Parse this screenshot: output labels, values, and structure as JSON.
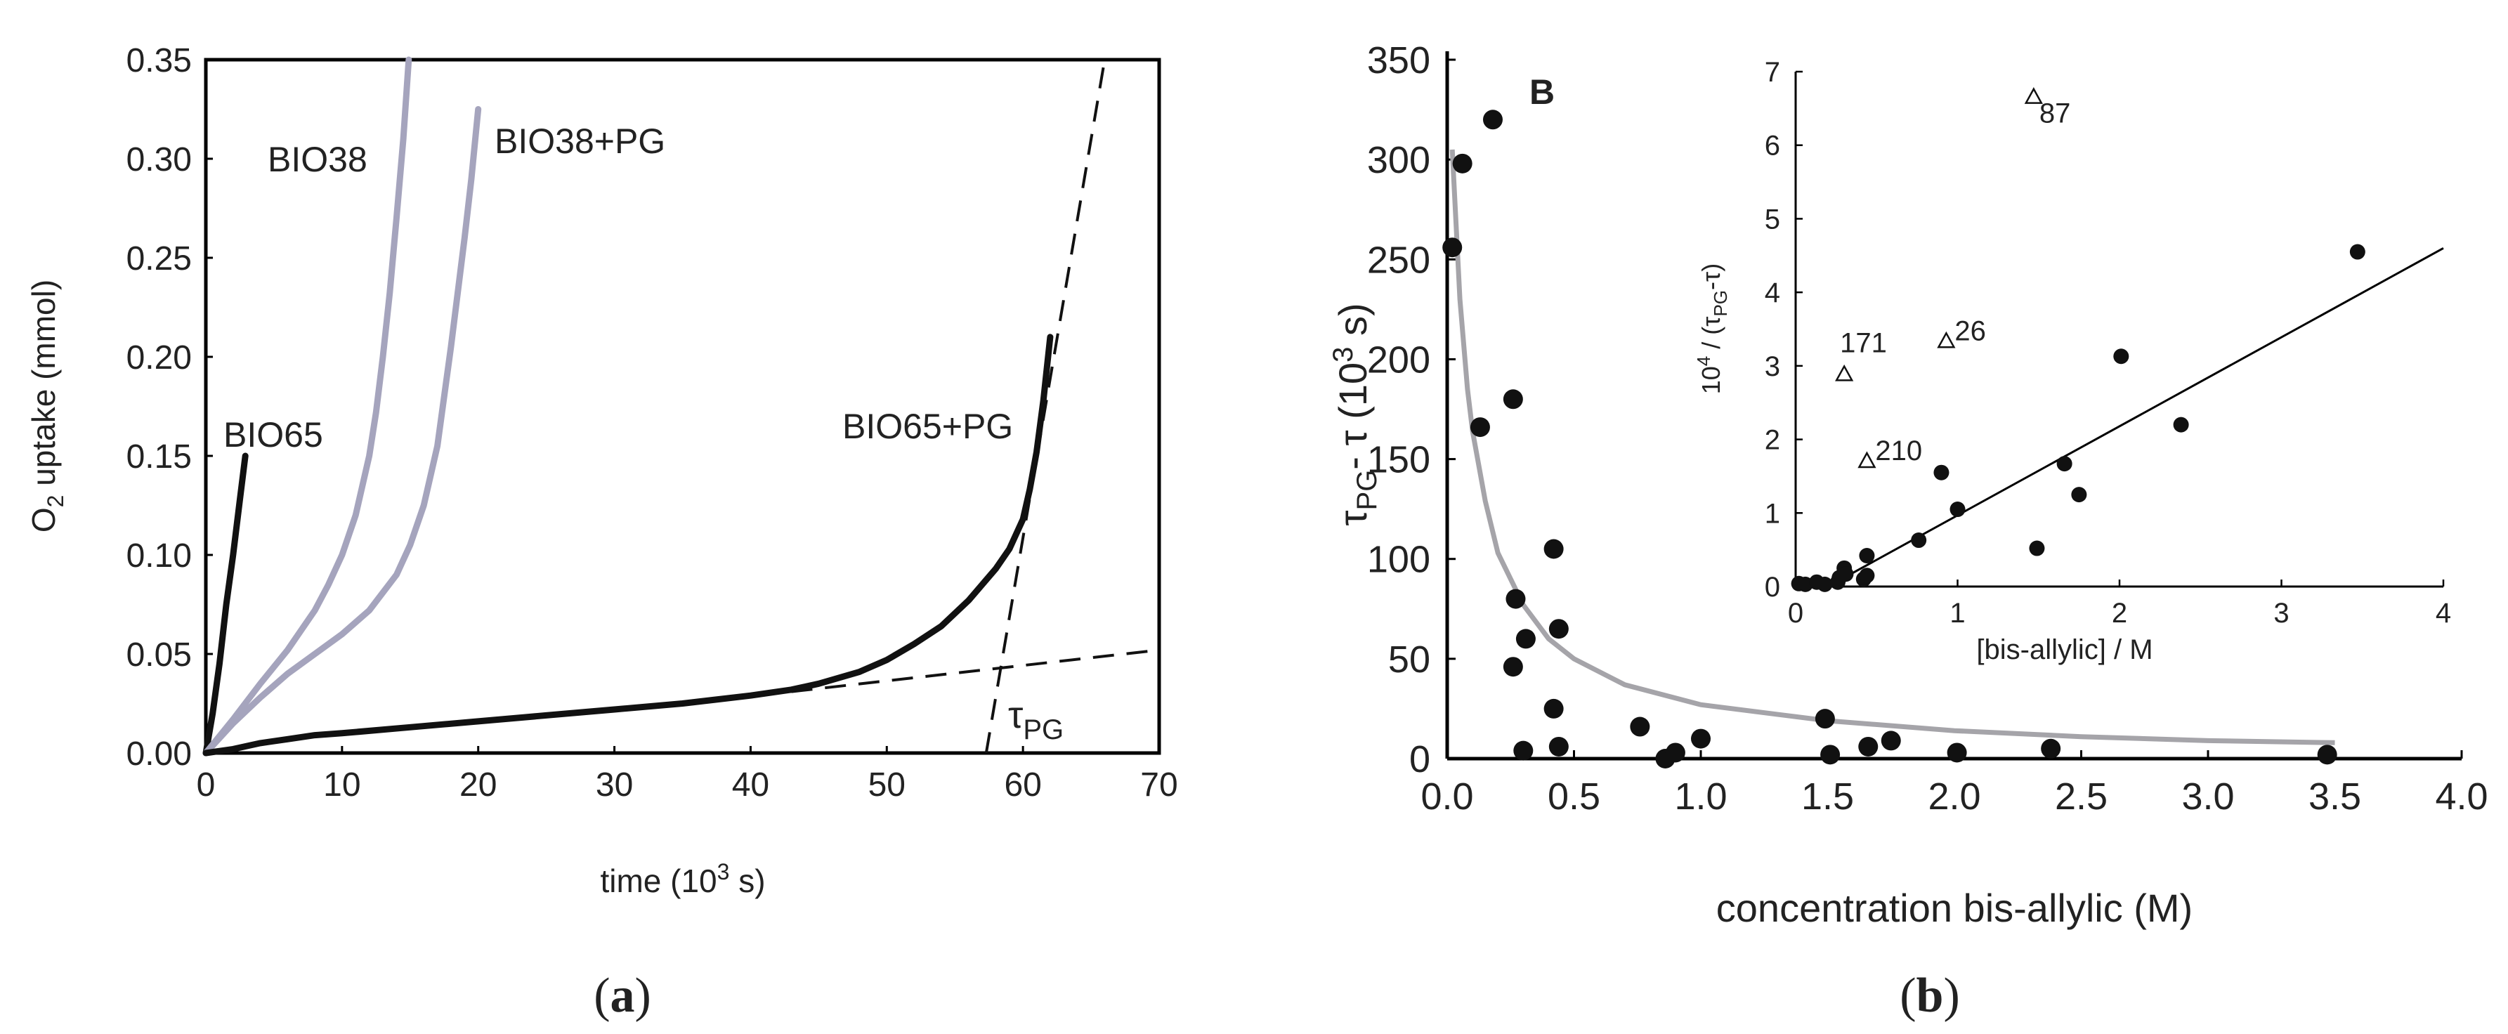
{
  "chart_data": [
    {
      "panel": "a",
      "type": "line",
      "caption": {
        "open": "(",
        "letter": "a",
        "close": ")"
      },
      "ylabel": {
        "prefix": "O",
        "sub": "2",
        "suffix": " uptake (mmol)"
      },
      "xlabel": {
        "prefix": "time (10",
        "sup": "3",
        "suffix": " s)"
      },
      "xlim": [
        0,
        70
      ],
      "ylim": [
        0,
        0.35
      ],
      "xticks": [
        "0",
        "10",
        "20",
        "30",
        "40",
        "50",
        "60",
        "70"
      ],
      "yticks": [
        "0.00",
        "0.05",
        "0.10",
        "0.15",
        "0.20",
        "0.25",
        "0.30",
        "0.35"
      ],
      "tau_label": {
        "main": "τ",
        "sub": "PG"
      },
      "colors": {
        "black": "#111111",
        "gray": "#a5a4bd"
      },
      "series": [
        {
          "name": "BIO65",
          "color": "#111111",
          "x": [
            0,
            0.5,
            1,
            1.5,
            2,
            2.5,
            2.9
          ],
          "y": [
            0,
            0.02,
            0.045,
            0.075,
            0.1,
            0.128,
            0.15
          ]
        },
        {
          "name": "BIO38",
          "color": "#a5a4bd",
          "x": [
            0,
            2,
            4,
            6,
            8,
            9,
            10,
            11,
            12,
            12.5,
            13,
            13.5,
            14,
            14.5,
            14.9
          ],
          "y": [
            0,
            0.017,
            0.035,
            0.052,
            0.072,
            0.085,
            0.1,
            0.12,
            0.15,
            0.172,
            0.2,
            0.232,
            0.27,
            0.31,
            0.35
          ]
        },
        {
          "name": "BIO38+PG",
          "color": "#a5a4bd",
          "x": [
            0,
            2,
            4,
            6,
            8,
            10,
            12,
            14,
            15,
            16,
            17,
            18,
            19,
            19.5,
            20
          ],
          "y": [
            0,
            0.015,
            0.028,
            0.04,
            0.05,
            0.06,
            0.072,
            0.09,
            0.105,
            0.125,
            0.155,
            0.205,
            0.26,
            0.29,
            0.325
          ]
        },
        {
          "name": "BIO65+PG",
          "color": "#111111",
          "x": [
            0,
            2,
            4,
            6,
            8,
            10,
            15,
            20,
            25,
            30,
            35,
            40,
            43,
            45,
            48,
            50,
            52,
            54,
            56,
            57,
            58,
            59,
            60,
            60.5,
            61,
            61.5,
            62
          ],
          "y": [
            0,
            0.002,
            0.005,
            0.007,
            0.009,
            0.01,
            0.013,
            0.016,
            0.019,
            0.022,
            0.025,
            0.029,
            0.032,
            0.035,
            0.041,
            0.047,
            0.055,
            0.064,
            0.077,
            0.085,
            0.093,
            0.103,
            0.118,
            0.133,
            0.152,
            0.178,
            0.21
          ]
        }
      ],
      "tangent_lines": [
        {
          "x": [
            43,
            70
          ],
          "y": [
            0.031,
            0.052
          ]
        },
        {
          "x": [
            57.3,
            66
          ],
          "y": [
            0.0,
            0.35
          ]
        }
      ]
    },
    {
      "panel": "b",
      "type": "scatter",
      "caption": {
        "open": "(",
        "letter": "b",
        "close": ")"
      },
      "panel_letter": "B",
      "xlabel": "concentration bis-allylic (M)",
      "ylabel": {
        "main1": "τ",
        "sub1": "PG",
        "mid": "- τ (10",
        "sup": "3",
        "suffix": " s)"
      },
      "xlim": [
        0,
        4.0
      ],
      "ylim": [
        0,
        350
      ],
      "xticks": [
        "0.0",
        "0.5",
        "1.0",
        "1.5",
        "2.0",
        "2.5",
        "3.0",
        "3.5",
        "4.0"
      ],
      "yticks": [
        "0",
        "50",
        "100",
        "150",
        "200",
        "250",
        "300",
        "350"
      ],
      "points": {
        "x": [
          0.02,
          0.06,
          0.18,
          0.13,
          0.26,
          0.27,
          0.26,
          0.31,
          0.3,
          0.42,
          0.44,
          0.42,
          0.44,
          0.76,
          0.86,
          0.9,
          1.0,
          1.49,
          1.51,
          1.66,
          1.75,
          2.01,
          2.38,
          3.47
        ],
        "y": [
          256,
          298,
          320,
          166,
          180,
          80,
          46,
          60,
          4,
          105,
          65,
          25,
          6,
          16,
          0,
          3,
          10,
          20,
          2,
          6,
          9,
          3,
          5,
          2
        ]
      },
      "fit_curve": {
        "x": [
          0.02,
          0.05,
          0.08,
          0.1,
          0.15,
          0.2,
          0.3,
          0.4,
          0.5,
          0.7,
          1.0,
          1.5,
          2.0,
          2.5,
          3.0,
          3.5
        ],
        "y": [
          305,
          230,
          185,
          164,
          129,
          103,
          77,
          60,
          50,
          37,
          27,
          19,
          14,
          11,
          9,
          8
        ]
      },
      "colors": {
        "fit": "#a5a4a9",
        "point": "#111111"
      },
      "inset": {
        "xlabel": "[bis-allylic] / M",
        "ylabel": {
          "prefix": "10",
          "sup": "4",
          "mid": " / (τ",
          "sub": "PG",
          "suffix": "-τ)"
        },
        "xlim": [
          0,
          4
        ],
        "ylim": [
          0,
          7
        ],
        "xticks": [
          "0",
          "1",
          "2",
          "3",
          "4"
        ],
        "yticks": [
          "0",
          "1",
          "2",
          "3",
          "4",
          "5",
          "6",
          "7"
        ],
        "points": {
          "x": [
            0.02,
            0.06,
            0.13,
            0.18,
            0.26,
            0.27,
            0.3,
            0.31,
            0.42,
            0.44,
            0.44,
            0.76,
            0.9,
            1.0,
            1.49,
            1.66,
            1.75,
            2.01,
            2.38,
            3.47
          ],
          "y": [
            0.04,
            0.03,
            0.06,
            0.03,
            0.06,
            0.12,
            0.25,
            0.17,
            0.1,
            0.42,
            0.15,
            0.63,
            1.55,
            1.05,
            0.52,
            1.67,
            1.25,
            3.13,
            2.2,
            4.55
          ]
        },
        "fit_line": {
          "x": [
            0.2,
            4.0
          ],
          "y": [
            0.0,
            4.6
          ]
        },
        "outliers": [
          {
            "label": "87",
            "x": 1.47,
            "y": 6.65
          },
          {
            "label": "26",
            "x": 0.93,
            "y": 3.33
          },
          {
            "label": "171",
            "x": 0.3,
            "y": 2.88
          },
          {
            "label": "210",
            "x": 0.44,
            "y": 1.7
          }
        ]
      }
    }
  ]
}
